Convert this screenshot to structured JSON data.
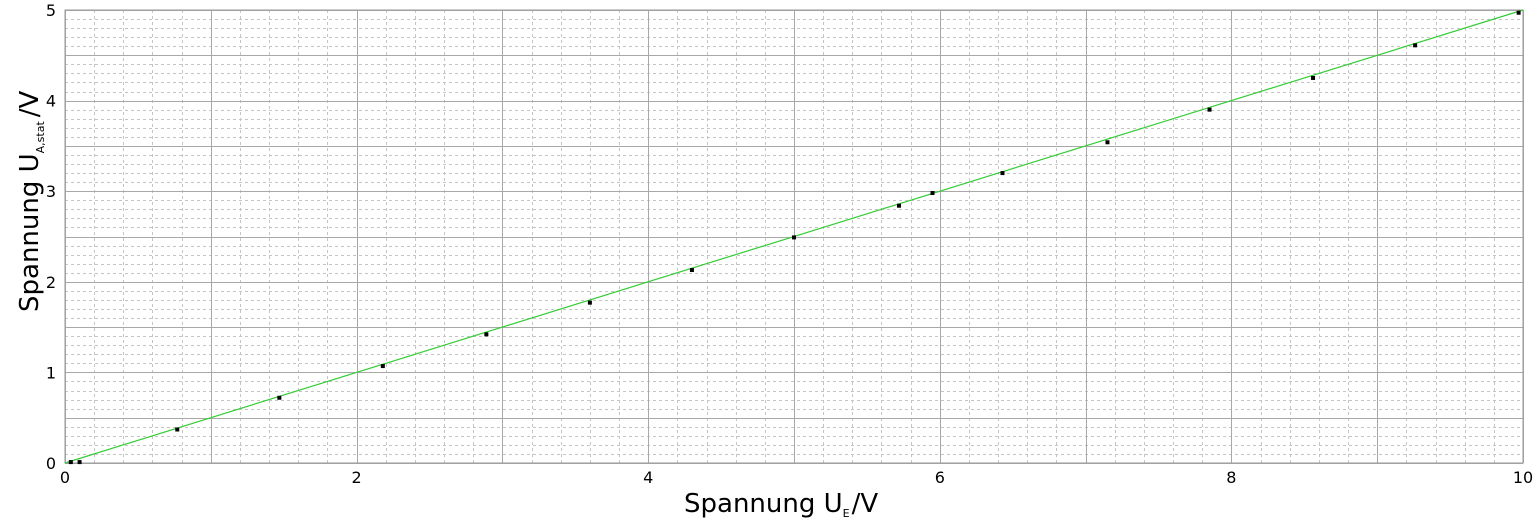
{
  "chart_data": {
    "type": "scatter",
    "title": "",
    "xlabel": {
      "main": "Spannung  U",
      "sub": "E",
      "unit": "/V"
    },
    "ylabel": {
      "main": "Spannung U",
      "sub": "A,stat",
      "unit": "/V"
    },
    "xlim": [
      0,
      10
    ],
    "ylim": [
      0,
      5
    ],
    "xticks": [
      0,
      2,
      4,
      6,
      8,
      10
    ],
    "xtick_labels": [
      "0",
      "2",
      "4",
      "6",
      "8",
      "10"
    ],
    "yticks": [
      0,
      1,
      2,
      3,
      4,
      5
    ],
    "ytick_labels": [
      "0",
      "1",
      "2",
      "3",
      "4",
      "5"
    ],
    "grid": true,
    "legend": "none",
    "series": [
      {
        "kind": "points",
        "color": "#000000",
        "x": [
          0.04,
          0.1,
          0.77,
          1.47,
          2.18,
          2.89,
          3.6,
          4.3,
          5.0,
          5.72,
          5.95,
          6.43,
          7.15,
          7.85,
          8.56,
          9.26,
          9.97
        ],
        "y": [
          0.01,
          0.01,
          0.37,
          0.72,
          1.07,
          1.42,
          1.77,
          2.13,
          2.49,
          2.84,
          2.98,
          3.2,
          3.54,
          3.9,
          4.25,
          4.61,
          4.97
        ]
      },
      {
        "kind": "fit-line",
        "color": "#33cc33",
        "x": [
          0,
          10
        ],
        "y": [
          0,
          5
        ]
      }
    ]
  }
}
